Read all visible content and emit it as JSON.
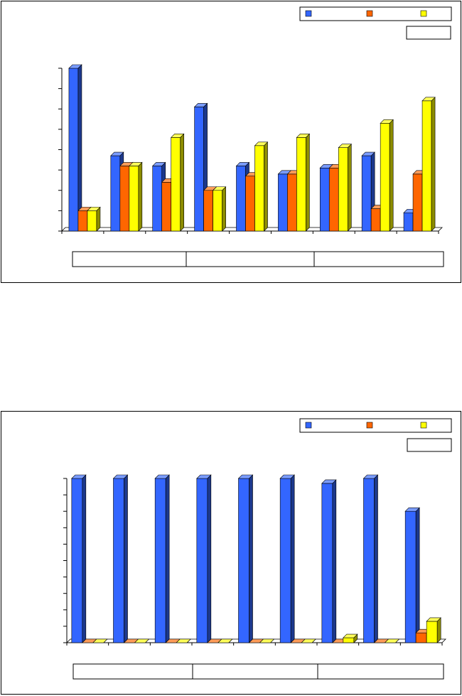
{
  "chart_data": [
    {
      "type": "bar",
      "title": "",
      "xlabel": "",
      "ylabel": "",
      "ylim": [
        0,
        80
      ],
      "bar_style": "3d-clustered",
      "grid": false,
      "legend_placement": "top-right",
      "categories": [
        "",
        "",
        "",
        "",
        "",
        "",
        "",
        "",
        ""
      ],
      "group_labels": [
        "",
        "",
        ""
      ],
      "series": [
        {
          "color": "#3366FF",
          "values": [
            80,
            37,
            32,
            61,
            32,
            28,
            31,
            37,
            9
          ]
        },
        {
          "color": "#FF6600",
          "values": [
            10,
            32,
            24,
            20,
            27,
            28,
            31,
            11,
            28
          ]
        },
        {
          "color": "#FFFF00",
          "values": [
            10,
            32,
            46,
            20,
            42,
            46,
            41,
            53,
            64
          ]
        }
      ]
    },
    {
      "type": "bar",
      "title": "",
      "xlabel": "",
      "ylabel": "",
      "ylim": [
        0,
        100
      ],
      "bar_style": "3d-clustered",
      "grid": false,
      "legend_placement": "top-right",
      "categories": [
        "",
        "",
        "",
        "",
        "",
        "",
        "",
        "",
        ""
      ],
      "group_labels": [
        "",
        "",
        ""
      ],
      "series": [
        {
          "color": "#3366FF",
          "values": [
            100,
            100,
            100,
            100,
            100,
            100,
            97,
            100,
            80
          ]
        },
        {
          "color": "#FF6600",
          "values": [
            0,
            0,
            0,
            0,
            0,
            0,
            0,
            0,
            6
          ]
        },
        {
          "color": "#FFFF00",
          "values": [
            0,
            0,
            0,
            0,
            0,
            0,
            3,
            0,
            13
          ]
        }
      ]
    }
  ]
}
